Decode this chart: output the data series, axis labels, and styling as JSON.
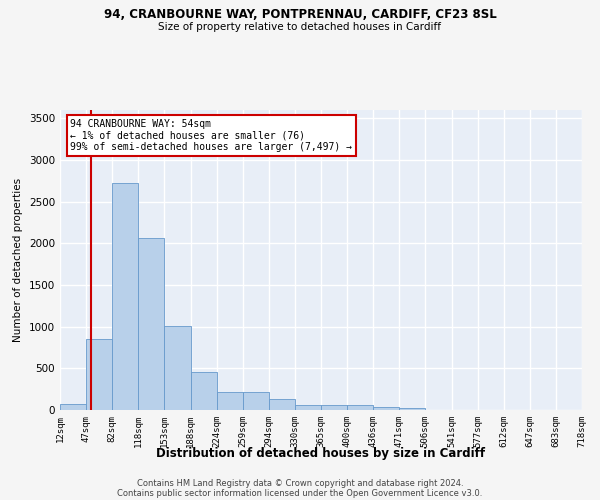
{
  "title1": "94, CRANBOURNE WAY, PONTPRENNAU, CARDIFF, CF23 8SL",
  "title2": "Size of property relative to detached houses in Cardiff",
  "xlabel": "Distribution of detached houses by size in Cardiff",
  "ylabel": "Number of detached properties",
  "bar_color": "#b8d0ea",
  "bar_edge_color": "#6699cc",
  "background_color": "#e8eef7",
  "grid_color": "#ffffff",
  "bin_labels": [
    "12sqm",
    "47sqm",
    "82sqm",
    "118sqm",
    "153sqm",
    "188sqm",
    "224sqm",
    "259sqm",
    "294sqm",
    "330sqm",
    "365sqm",
    "400sqm",
    "436sqm",
    "471sqm",
    "506sqm",
    "541sqm",
    "577sqm",
    "612sqm",
    "647sqm",
    "683sqm",
    "718sqm"
  ],
  "bar_values": [
    70,
    850,
    2720,
    2060,
    1010,
    455,
    220,
    220,
    130,
    65,
    55,
    55,
    35,
    20,
    5,
    5,
    0,
    0,
    0,
    0
  ],
  "ylim": [
    0,
    3600
  ],
  "yticks": [
    0,
    500,
    1000,
    1500,
    2000,
    2500,
    3000,
    3500
  ],
  "annotation_text": "94 CRANBOURNE WAY: 54sqm\n← 1% of detached houses are smaller (76)\n99% of semi-detached houses are larger (7,497) →",
  "annotation_box_color": "#ffffff",
  "annotation_border_color": "#cc0000",
  "red_line_color": "#cc0000",
  "footer1": "Contains HM Land Registry data © Crown copyright and database right 2024.",
  "footer2": "Contains public sector information licensed under the Open Government Licence v3.0.",
  "fig_bg": "#f5f5f5"
}
